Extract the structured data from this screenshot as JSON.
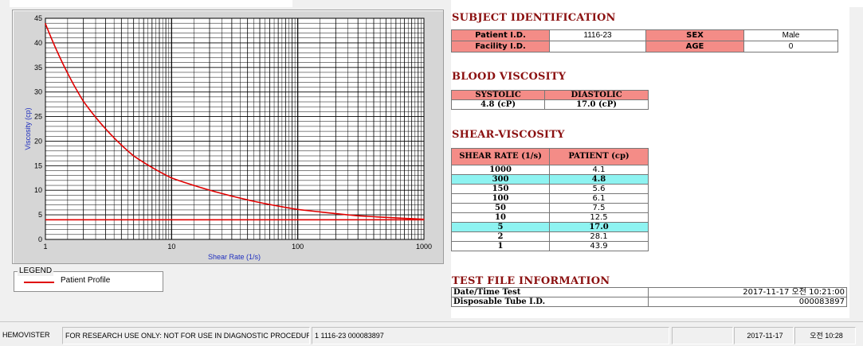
{
  "chart_data": {
    "type": "line",
    "xlabel": "Shear Rate (1/s)",
    "ylabel": "Viscosity (cp)",
    "x_scale": "log",
    "xlim": [
      1,
      1000
    ],
    "ylim": [
      0,
      45
    ],
    "x_ticks": [
      "1",
      "10",
      "100",
      "1000"
    ],
    "y_ticks": [
      "0",
      "5",
      "10",
      "15",
      "20",
      "25",
      "30",
      "35",
      "40",
      "45"
    ],
    "grid": true,
    "series": [
      {
        "name": "Patient Profile",
        "color": "#e00000",
        "x": [
          1,
          2,
          5,
          10,
          50,
          100,
          150,
          300,
          1000
        ],
        "y": [
          43.9,
          28.1,
          17.0,
          12.5,
          7.5,
          6.1,
          5.6,
          4.8,
          4.1
        ]
      }
    ],
    "reference_line": {
      "y": 4.0,
      "color": "#e00000"
    }
  },
  "legend": {
    "title": "LEGEND",
    "items": [
      {
        "label": "Patient Profile",
        "color": "#e00000"
      }
    ]
  },
  "subject": {
    "title": "SUBJECT IDENTIFICATION",
    "patient_id_label": "Patient I.D.",
    "patient_id": "1116-23",
    "sex_label": "SEX",
    "sex": "Male",
    "facility_label": "Facility I.D.",
    "facility": "",
    "age_label": "AGE",
    "age": "0"
  },
  "blood": {
    "title": "BLOOD VISCOSITY",
    "systolic_label": "SYSTOLIC",
    "diastolic_label": "DIASTOLIC",
    "systolic": "4.8 (cP)",
    "diastolic": "17.0 (cP)"
  },
  "shear": {
    "title": "SHEAR-VISCOSITY",
    "col1": "SHEAR RATE (1/s)",
    "col2": "PATIENT (cp)",
    "rows": [
      {
        "rate": "1000",
        "patient": "4.1",
        "highlight": false
      },
      {
        "rate": "300",
        "patient": "4.8",
        "highlight": true
      },
      {
        "rate": "150",
        "patient": "5.6",
        "highlight": false
      },
      {
        "rate": "100",
        "patient": "6.1",
        "highlight": false
      },
      {
        "rate": "50",
        "patient": "7.5",
        "highlight": false
      },
      {
        "rate": "10",
        "patient": "12.5",
        "highlight": false
      },
      {
        "rate": "5",
        "patient": "17.0",
        "highlight": true
      },
      {
        "rate": "2",
        "patient": "28.1",
        "highlight": false
      },
      {
        "rate": "1",
        "patient": "43.9",
        "highlight": false
      }
    ]
  },
  "testfile": {
    "title": "TEST FILE INFORMATION",
    "datetime_label": "Date/Time Test",
    "datetime": "2017-11-17  오전 10:21:00",
    "tube_label": "Disposable Tube I.D.",
    "tube": "000083897"
  },
  "status": {
    "app": "HEMOVISTER",
    "notice": "FOR RESEARCH USE ONLY: NOT FOR USE IN DIAGNOSTIC PROCEDURES",
    "record": "1  1116-23  000083897",
    "blank": "",
    "date": "2017-11-17",
    "time": "오전 10:28"
  },
  "colors": {
    "header_fill": "#f48c87",
    "highlight_fill": "#8ef3f1",
    "title_color": "#8b1010",
    "curve": "#e00000",
    "axis_text": "#1f2fbf"
  }
}
